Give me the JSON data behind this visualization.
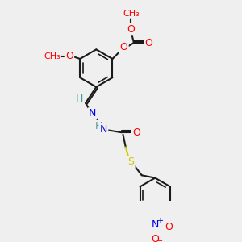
{
  "background_color": "#efefef",
  "bond_color": "#1a1a1a",
  "atom_colors": {
    "O": "#ff0000",
    "N": "#0000ee",
    "S": "#cccc00",
    "H": "#4a9a9a",
    "C": "#1a1a1a"
  },
  "figsize": [
    3.0,
    3.0
  ],
  "dpi": 100
}
